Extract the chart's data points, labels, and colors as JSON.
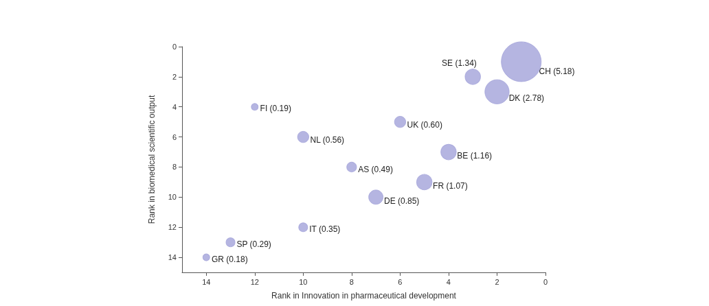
{
  "chart_data": {
    "type": "bubble",
    "xlabel": "Rank in Innovation in pharmaceutical development",
    "ylabel": "Rank in biomedical scientific output",
    "x": [
      1,
      3,
      2,
      12,
      6,
      10,
      4,
      8,
      5,
      7,
      10,
      13,
      14
    ],
    "values": [
      1,
      2,
      3,
      4,
      5,
      6,
      7,
      8,
      9,
      10,
      12,
      13,
      14
    ],
    "sizes": [
      1,
      0.15,
      0.37,
      0.03,
      0.08,
      0.08,
      0.15,
      0.06,
      0.15,
      0.13,
      0.05,
      0.05,
      0.03
    ],
    "annotations": [
      {
        "text": "CH (5.18)",
        "x": 1,
        "y": 1
      },
      {
        "text": "SE (1.34)",
        "x": 3,
        "y": 2
      },
      {
        "text": "DK (2.78)",
        "x": 2,
        "y": 3
      },
      {
        "text": "FI (0.19)",
        "x": 12,
        "y": 4
      },
      {
        "text": "UK (0.60)",
        "x": 6,
        "y": 5
      },
      {
        "text": "NL (0.56)",
        "x": 10,
        "y": 6
      },
      {
        "text": "BE (1.16)",
        "x": 4,
        "y": 7
      },
      {
        "text": "AS (0.49)",
        "x": 8,
        "y": 8
      },
      {
        "text": "FR (1.07)",
        "x": 5,
        "y": 9
      },
      {
        "text": "DE (0.85)",
        "x": 7,
        "y": 10
      },
      {
        "text": "IT (0.35)",
        "x": 10,
        "y": 12
      },
      {
        "text": "SP (0.29)",
        "x": 13,
        "y": 13
      },
      {
        "text": "GR (0.18)",
        "x": 14,
        "y": 14
      }
    ],
    "color": "#a3a3d9",
    "marker": "circle",
    "grid": false,
    "xlim": [
      15,
      0
    ],
    "xticks": [
      14,
      12,
      10,
      8,
      6,
      4,
      2,
      0
    ],
    "ylim": [
      15,
      0
    ],
    "yticks": [
      14,
      12,
      10,
      8,
      6,
      4,
      2,
      0
    ]
  }
}
